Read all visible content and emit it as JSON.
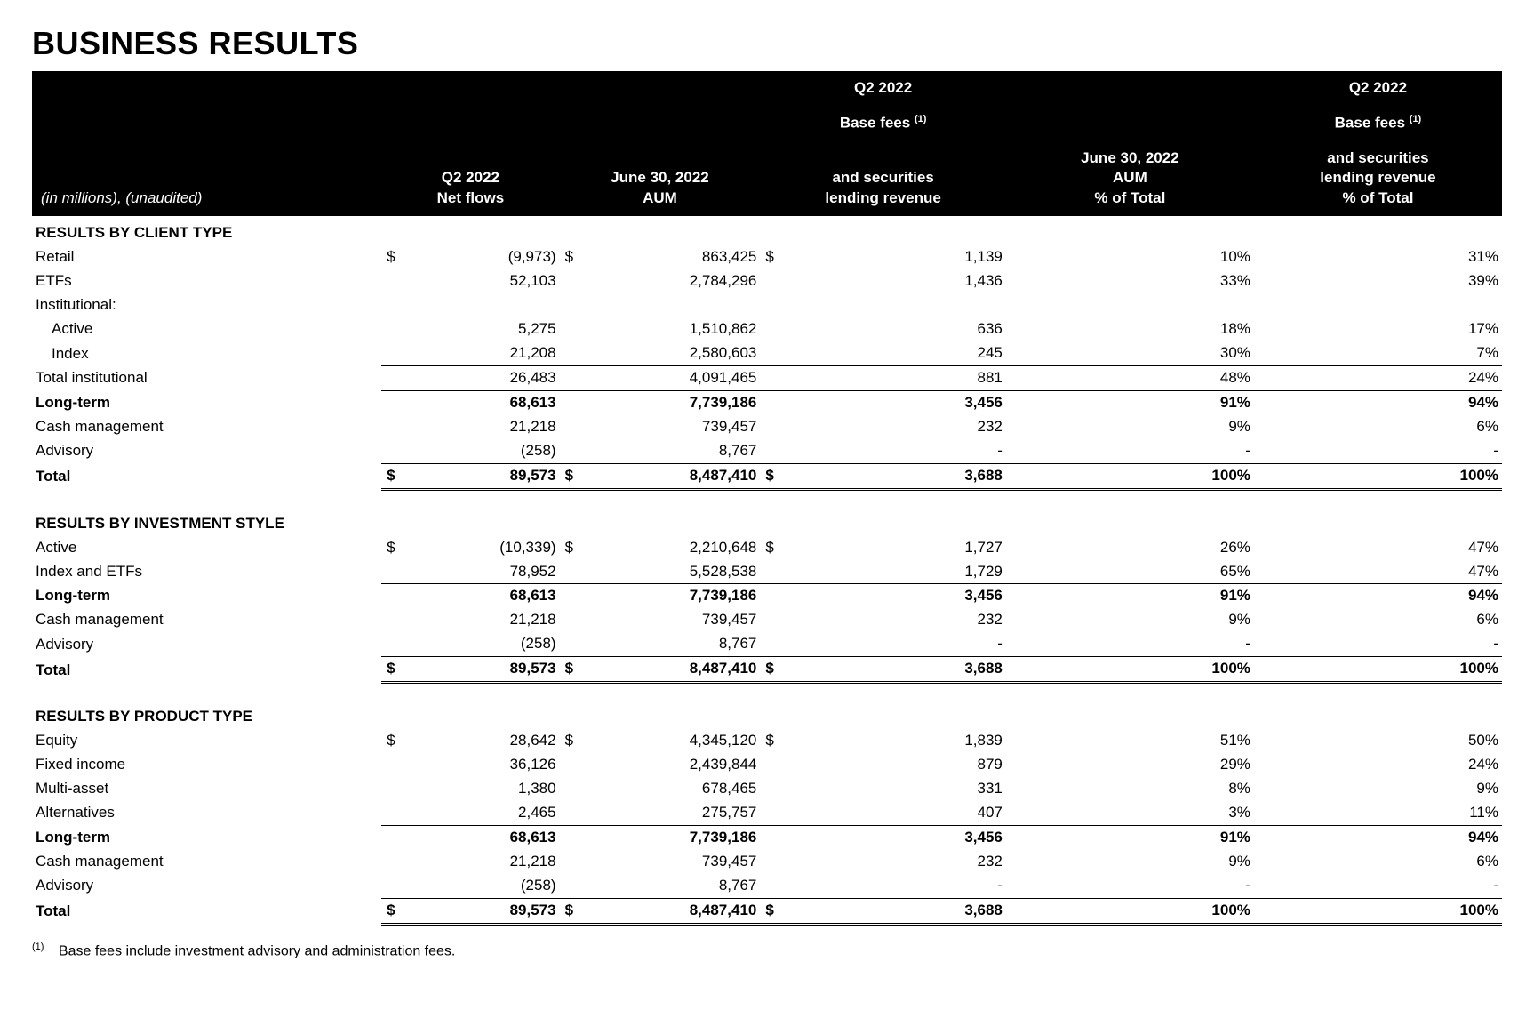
{
  "title": "BUSINESS RESULTS",
  "header": {
    "unit_note": "(in millions), (unaudited)",
    "col1": "Q2 2022\nNet flows",
    "col2": "June 30, 2022\nAUM",
    "col3_top": "Q2 2022",
    "col3_mid": "Base fees ⁽¹⁾",
    "col3_bot": "and securities\nlending revenue",
    "col4": "June 30, 2022\nAUM\n% of Total",
    "col5_top": "Q2 2022",
    "col5_mid": "Base fees ⁽¹⁾",
    "col5_bot": "and securities\nlending revenue\n% of Total"
  },
  "sections": [
    {
      "title": "RESULTS BY CLIENT TYPE",
      "rows": [
        {
          "label": "Retail",
          "d": true,
          "c1": "(9,973)",
          "c2": "863,425",
          "c3": "1,139",
          "c4": "10%",
          "c5": "31%"
        },
        {
          "label": "ETFs",
          "c1": "52,103",
          "c2": "2,784,296",
          "c3": "1,436",
          "c4": "33%",
          "c5": "39%"
        },
        {
          "label": "Institutional:"
        },
        {
          "label": "Active",
          "indent": true,
          "c1": "5,275",
          "c2": "1,510,862",
          "c3": "636",
          "c4": "18%",
          "c5": "17%"
        },
        {
          "label": "Index",
          "indent": true,
          "c1": "21,208",
          "c2": "2,580,603",
          "c3": "245",
          "c4": "30%",
          "c5": "7%"
        },
        {
          "label": "Total institutional",
          "top": true,
          "c1": "26,483",
          "c2": "4,091,465",
          "c3": "881",
          "c4": "48%",
          "c5": "24%"
        },
        {
          "label": "Long-term",
          "bold": true,
          "top": true,
          "c1": "68,613",
          "c2": "7,739,186",
          "c3": "3,456",
          "c4": "91%",
          "c5": "94%"
        },
        {
          "label": "Cash management",
          "c1": "21,218",
          "c2": "739,457",
          "c3": "232",
          "c4": "9%",
          "c5": "6%"
        },
        {
          "label": "Advisory",
          "c1": "(258)",
          "c2": "8,767",
          "c3": "-",
          "c4": "-",
          "c5": "-"
        },
        {
          "label": "Total",
          "bold": true,
          "d": true,
          "dbl": true,
          "c1": "89,573",
          "c2": "8,487,410",
          "c3": "3,688",
          "c4": "100%",
          "c5": "100%"
        }
      ]
    },
    {
      "title": "RESULTS BY INVESTMENT STYLE",
      "rows": [
        {
          "label": "Active",
          "d": true,
          "c1": "(10,339)",
          "c2": "2,210,648",
          "c3": "1,727",
          "c4": "26%",
          "c5": "47%"
        },
        {
          "label": "Index and ETFs",
          "c1": "78,952",
          "c2": "5,528,538",
          "c3": "1,729",
          "c4": "65%",
          "c5": "47%"
        },
        {
          "label": "Long-term",
          "bold": true,
          "top": true,
          "c1": "68,613",
          "c2": "7,739,186",
          "c3": "3,456",
          "c4": "91%",
          "c5": "94%"
        },
        {
          "label": "Cash management",
          "c1": "21,218",
          "c2": "739,457",
          "c3": "232",
          "c4": "9%",
          "c5": "6%"
        },
        {
          "label": "Advisory",
          "c1": "(258)",
          "c2": "8,767",
          "c3": "-",
          "c4": "-",
          "c5": "-"
        },
        {
          "label": "Total",
          "bold": true,
          "d": true,
          "dbl": true,
          "c1": "89,573",
          "c2": "8,487,410",
          "c3": "3,688",
          "c4": "100%",
          "c5": "100%"
        }
      ]
    },
    {
      "title": "RESULTS BY PRODUCT TYPE",
      "rows": [
        {
          "label": "Equity",
          "d": true,
          "c1": "28,642",
          "c2": "4,345,120",
          "c3": "1,839",
          "c4": "51%",
          "c5": "50%"
        },
        {
          "label": "Fixed income",
          "c1": "36,126",
          "c2": "2,439,844",
          "c3": "879",
          "c4": "29%",
          "c5": "24%"
        },
        {
          "label": "Multi-asset",
          "c1": "1,380",
          "c2": "678,465",
          "c3": "331",
          "c4": "8%",
          "c5": "9%"
        },
        {
          "label": "Alternatives",
          "c1": "2,465",
          "c2": "275,757",
          "c3": "407",
          "c4": "3%",
          "c5": "11%"
        },
        {
          "label": "Long-term",
          "bold": true,
          "top": true,
          "c1": "68,613",
          "c2": "7,739,186",
          "c3": "3,456",
          "c4": "91%",
          "c5": "94%"
        },
        {
          "label": "Cash management",
          "c1": "21,218",
          "c2": "739,457",
          "c3": "232",
          "c4": "9%",
          "c5": "6%"
        },
        {
          "label": "Advisory",
          "c1": "(258)",
          "c2": "8,767",
          "c3": "-",
          "c4": "-",
          "c5": "-"
        },
        {
          "label": "Total",
          "bold": true,
          "d": true,
          "dbl": true,
          "c1": "89,573",
          "c2": "8,487,410",
          "c3": "3,688",
          "c4": "100%",
          "c5": "100%"
        }
      ]
    }
  ],
  "footnote": "Base fees include investment advisory and administration fees.",
  "footnote_marker": "(1)"
}
